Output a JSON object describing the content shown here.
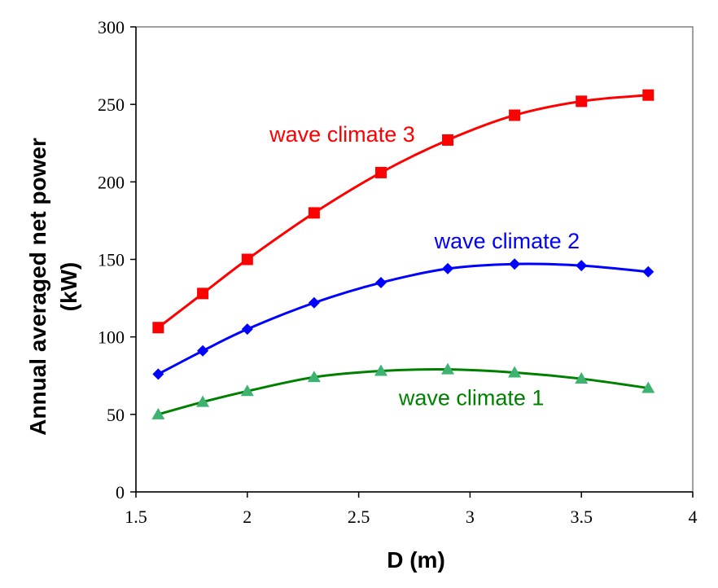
{
  "chart_data": {
    "type": "line",
    "xlabel": "D (m)",
    "ylabel_lines": [
      "Annual averaged net power",
      "(kW)"
    ],
    "xlim": [
      1.5,
      4
    ],
    "ylim": [
      0,
      300
    ],
    "xticks": [
      1.5,
      2,
      2.5,
      3,
      3.5,
      4
    ],
    "xtick_labels": [
      "1.5",
      "2",
      "2.5",
      "3",
      "3.5",
      "4"
    ],
    "yticks": [
      0,
      50,
      100,
      150,
      200,
      250,
      300
    ],
    "ytick_labels": [
      "0",
      "50",
      "100",
      "150",
      "200",
      "250",
      "300"
    ],
    "grid": false,
    "series": [
      {
        "name": "wave climate 3",
        "color": "#ff0000",
        "marker": "square",
        "x": [
          1.6,
          1.8,
          2.0,
          2.3,
          2.6,
          2.9,
          3.2,
          3.5,
          3.8
        ],
        "y": [
          106,
          128,
          150,
          180,
          206,
          227,
          243,
          252,
          256
        ],
        "label_pos": {
          "x": 2.1,
          "y": 226
        }
      },
      {
        "name": "wave climate 2",
        "color": "#0000ff",
        "marker": "diamond",
        "x": [
          1.6,
          1.8,
          2.0,
          2.3,
          2.6,
          2.9,
          3.2,
          3.5,
          3.8
        ],
        "y": [
          76,
          91,
          105,
          122,
          135,
          144,
          147,
          146,
          142
        ],
        "label_pos": {
          "x": 2.84,
          "y": 157
        }
      },
      {
        "name": "wave climate 1",
        "color": "#008000",
        "marker_color": "#3cb371",
        "marker": "triangle",
        "x": [
          1.6,
          1.8,
          2.0,
          2.3,
          2.6,
          2.9,
          3.2,
          3.5,
          3.8
        ],
        "y": [
          50,
          58,
          65,
          74,
          78,
          79,
          77,
          73,
          67
        ],
        "label_pos": {
          "x": 2.68,
          "y": 56
        }
      }
    ]
  }
}
